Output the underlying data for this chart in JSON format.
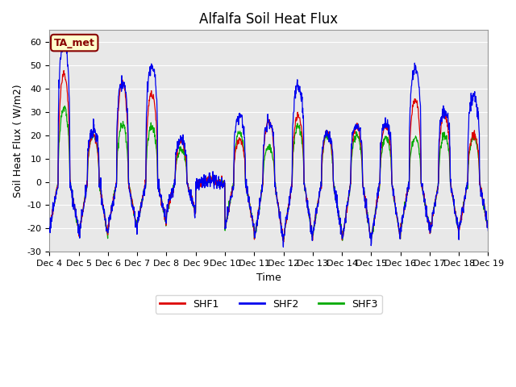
{
  "title": "Alfalfa Soil Heat Flux",
  "ylabel": "Soil Heat Flux ( W/m2)",
  "xlabel": "Time",
  "ylim": [
    -30,
    65
  ],
  "yticks": [
    -30,
    -20,
    -10,
    0,
    10,
    20,
    30,
    40,
    50,
    60
  ],
  "n_days": 15,
  "samples_per_day": 96,
  "colors": {
    "SHF1": "#dd0000",
    "SHF2": "#0000ee",
    "SHF3": "#00aa00"
  },
  "annotation_text": "TA_met",
  "annotation_color": "#880000",
  "annotation_bg": "#ffffcc",
  "fig_bg": "#ffffff",
  "plot_bg": "#e8e8e8",
  "grid_color": "#ffffff",
  "title_fontsize": 12,
  "axis_label_fontsize": 9,
  "tick_fontsize": 8,
  "line_width": 0.9,
  "day_peaks_shf1": [
    46,
    20,
    43,
    38,
    17,
    1,
    18,
    26,
    28,
    21,
    24,
    24,
    35,
    29,
    20
  ],
  "day_peaks_shf2": [
    60,
    22,
    43,
    49,
    18,
    1,
    28,
    26,
    41,
    21,
    24,
    25,
    49,
    30,
    37
  ],
  "day_peaks_shf3": [
    32,
    20,
    24,
    24,
    14,
    1,
    21,
    15,
    24,
    20,
    20,
    19,
    19,
    20,
    19
  ],
  "day_night_min": [
    -20,
    -23,
    -20,
    -18,
    -13,
    -1,
    -20,
    -25,
    -24,
    -22,
    -25,
    -24,
    -20,
    -22,
    -20
  ]
}
